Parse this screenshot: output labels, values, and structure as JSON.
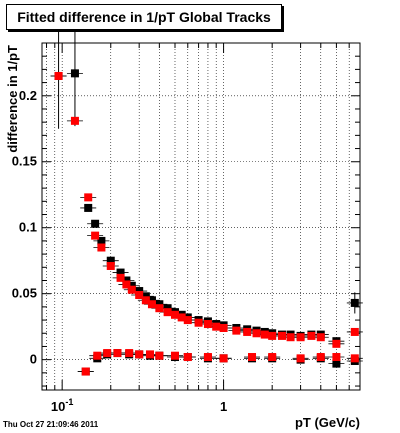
{
  "chart_data": {
    "type": "scatter",
    "title": "Fitted difference in 1/pT  Global Tracks",
    "xlabel": "pT (GeV/c)",
    "ylabel": "difference in 1/pT",
    "x_scale": "log",
    "xlim": [
      0.075,
      7.0
    ],
    "ylim": [
      -0.023,
      0.24
    ],
    "x_ticks": [
      {
        "value": 0.1,
        "label": "10^-1"
      },
      {
        "value": 1,
        "label": "1"
      }
    ],
    "y_ticks": [
      0,
      0.05,
      0.1,
      0.15,
      0.2
    ],
    "grid": true,
    "colors": {
      "black_series": "#000000",
      "red_series": "#ff0000"
    },
    "series": [
      {
        "color": "black",
        "points": [
          {
            "x": 0.095,
            "y": 0.215,
            "yerr": 0.04
          },
          {
            "x": 0.12,
            "y": 0.217,
            "yerr": 0.04
          },
          {
            "x": 0.145,
            "y": 0.115
          },
          {
            "x": 0.16,
            "y": 0.103
          },
          {
            "x": 0.175,
            "y": 0.09
          },
          {
            "x": 0.2,
            "y": 0.075
          },
          {
            "x": 0.23,
            "y": 0.066
          },
          {
            "x": 0.25,
            "y": 0.06
          },
          {
            "x": 0.27,
            "y": 0.056
          },
          {
            "x": 0.3,
            "y": 0.052
          },
          {
            "x": 0.33,
            "y": 0.048
          },
          {
            "x": 0.36,
            "y": 0.045
          },
          {
            "x": 0.4,
            "y": 0.042
          },
          {
            "x": 0.45,
            "y": 0.039
          },
          {
            "x": 0.5,
            "y": 0.036
          },
          {
            "x": 0.55,
            "y": 0.034
          },
          {
            "x": 0.6,
            "y": 0.032
          },
          {
            "x": 0.7,
            "y": 0.03
          },
          {
            "x": 0.8,
            "y": 0.029
          },
          {
            "x": 0.9,
            "y": 0.027
          },
          {
            "x": 1.0,
            "y": 0.026
          },
          {
            "x": 1.2,
            "y": 0.024
          },
          {
            "x": 1.4,
            "y": 0.023
          },
          {
            "x": 1.6,
            "y": 0.022
          },
          {
            "x": 1.8,
            "y": 0.021
          },
          {
            "x": 2.0,
            "y": 0.02
          },
          {
            "x": 2.3,
            "y": 0.019
          },
          {
            "x": 2.6,
            "y": 0.019
          },
          {
            "x": 3.0,
            "y": 0.018
          },
          {
            "x": 3.5,
            "y": 0.019
          },
          {
            "x": 4.0,
            "y": 0.019
          },
          {
            "x": 5.0,
            "y": 0.014
          },
          {
            "x": 6.5,
            "y": 0.043,
            "yerr": 0.008
          },
          {
            "x": 0.14,
            "y": -0.009
          },
          {
            "x": 0.165,
            "y": 0.001
          },
          {
            "x": 0.19,
            "y": 0.004
          },
          {
            "x": 0.22,
            "y": 0.005
          },
          {
            "x": 0.26,
            "y": 0.004
          },
          {
            "x": 0.3,
            "y": 0.004
          },
          {
            "x": 0.35,
            "y": 0.003
          },
          {
            "x": 0.4,
            "y": 0.003
          },
          {
            "x": 0.5,
            "y": 0.002
          },
          {
            "x": 0.6,
            "y": 0.002
          },
          {
            "x": 0.8,
            "y": 0.001
          },
          {
            "x": 1.0,
            "y": 0.001
          },
          {
            "x": 1.5,
            "y": 0.001
          },
          {
            "x": 2.0,
            "y": 0.001
          },
          {
            "x": 3.0,
            "y": 0.0
          },
          {
            "x": 4.0,
            "y": 0.001
          },
          {
            "x": 5.0,
            "y": -0.003
          },
          {
            "x": 6.5,
            "y": -0.001
          }
        ]
      },
      {
        "color": "red",
        "points": [
          {
            "x": 0.095,
            "y": 0.215
          },
          {
            "x": 0.12,
            "y": 0.181
          },
          {
            "x": 0.145,
            "y": 0.123
          },
          {
            "x": 0.16,
            "y": 0.094
          },
          {
            "x": 0.175,
            "y": 0.085
          },
          {
            "x": 0.2,
            "y": 0.071
          },
          {
            "x": 0.23,
            "y": 0.062
          },
          {
            "x": 0.25,
            "y": 0.057
          },
          {
            "x": 0.27,
            "y": 0.053
          },
          {
            "x": 0.3,
            "y": 0.049
          },
          {
            "x": 0.33,
            "y": 0.045
          },
          {
            "x": 0.36,
            "y": 0.042
          },
          {
            "x": 0.4,
            "y": 0.039
          },
          {
            "x": 0.45,
            "y": 0.036
          },
          {
            "x": 0.5,
            "y": 0.034
          },
          {
            "x": 0.55,
            "y": 0.032
          },
          {
            "x": 0.6,
            "y": 0.03
          },
          {
            "x": 0.7,
            "y": 0.028
          },
          {
            "x": 0.8,
            "y": 0.027
          },
          {
            "x": 0.9,
            "y": 0.025
          },
          {
            "x": 1.0,
            "y": 0.024
          },
          {
            "x": 1.2,
            "y": 0.022
          },
          {
            "x": 1.4,
            "y": 0.021
          },
          {
            "x": 1.6,
            "y": 0.02
          },
          {
            "x": 1.8,
            "y": 0.019
          },
          {
            "x": 2.0,
            "y": 0.018
          },
          {
            "x": 2.3,
            "y": 0.018
          },
          {
            "x": 2.6,
            "y": 0.017
          },
          {
            "x": 3.0,
            "y": 0.017
          },
          {
            "x": 3.5,
            "y": 0.018
          },
          {
            "x": 4.0,
            "y": 0.017
          },
          {
            "x": 5.0,
            "y": 0.012
          },
          {
            "x": 6.5,
            "y": 0.021
          },
          {
            "x": 0.14,
            "y": -0.009
          },
          {
            "x": 0.165,
            "y": 0.003
          },
          {
            "x": 0.19,
            "y": 0.005
          },
          {
            "x": 0.22,
            "y": 0.005
          },
          {
            "x": 0.26,
            "y": 0.005
          },
          {
            "x": 0.3,
            "y": 0.004
          },
          {
            "x": 0.35,
            "y": 0.004
          },
          {
            "x": 0.4,
            "y": 0.003
          },
          {
            "x": 0.5,
            "y": 0.003
          },
          {
            "x": 0.6,
            "y": 0.002
          },
          {
            "x": 0.8,
            "y": 0.002
          },
          {
            "x": 1.0,
            "y": 0.001
          },
          {
            "x": 1.5,
            "y": 0.002
          },
          {
            "x": 2.0,
            "y": 0.002
          },
          {
            "x": 3.0,
            "y": 0.001
          },
          {
            "x": 4.0,
            "y": 0.002
          },
          {
            "x": 5.0,
            "y": 0.002
          },
          {
            "x": 6.5,
            "y": 0.001
          }
        ]
      }
    ]
  },
  "timestamp": "Thu Oct 27 21:09:46 2011"
}
